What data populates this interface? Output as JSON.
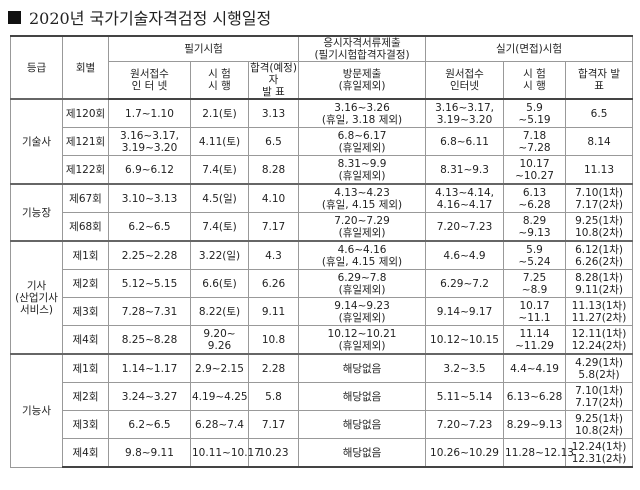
{
  "title": "2020년 국가기술자격검정 시행일정",
  "table": {
    "header": {
      "row1": [
        "등급",
        "회별",
        "필기시험",
        "응시자격서류제출\n(필기시험합격자결정)",
        "실기(면접)시험"
      ],
      "row2": [
        "원서접수\n인 터 넷",
        "시 험\n시 행",
        "합격(예정)자\n발 표",
        "방문제출\n(휴일제외)",
        "원서접수\n인터넷",
        "시 험\n시 행",
        "합격자 발\n표"
      ]
    },
    "groups": [
      {
        "grade": "기술사",
        "rows": [
          [
            "제120회",
            "1.7~1.10",
            "2.1(토)",
            "3.13",
            "3.16~3.26\n(휴일, 3.18 제외)",
            "3.16~3.17,\n3.19~3.20",
            "5.9\n~5.19",
            "6.5"
          ],
          [
            "제121회",
            "3.16~3.17,\n3.19~3.20",
            "4.11(토)",
            "6.5",
            "6.8~6.17\n(휴일제외)",
            "6.8~6.11",
            "7.18\n~7.28",
            "8.14"
          ],
          [
            "제122회",
            "6.9~6.12",
            "7.4(토)",
            "8.28",
            "8.31~9.9\n(휴일제외)",
            "8.31~9.3",
            "10.17\n~10.27",
            "11.13"
          ]
        ]
      },
      {
        "grade": "기능장",
        "rows": [
          [
            "제67회",
            "3.10~3.13",
            "4.5(일)",
            "4.10",
            "4.13~4.23\n(휴일, 4.15 제외)",
            "4.13~4.14,\n4.16~4.17",
            "6.13\n~6.28",
            "7.10(1차)\n7.17(2차)"
          ],
          [
            "제68회",
            "6.2~6.5",
            "7.4(토)",
            "7.17",
            "7.20~7.29\n(휴일제외)",
            "7.20~7.23",
            "8.29\n~9.13",
            "9.25(1차)\n10.8(2차)"
          ]
        ]
      },
      {
        "grade": "기사\n(산업기사\n서비스)",
        "rows": [
          [
            "제1회",
            "2.25~2.28",
            "3.22(일)",
            "4.3",
            "4.6~4.16\n(휴일, 4.15 제외)",
            "4.6~4.9",
            "5.9\n~5.24",
            "6.12(1차)\n6.26(2차)"
          ],
          [
            "제2회",
            "5.12~5.15",
            "6.6(토)",
            "6.26",
            "6.29~7.8\n(휴일제외)",
            "6.29~7.2",
            "7.25\n~8.9",
            "8.28(1차)\n9.11(2차)"
          ],
          [
            "제3회",
            "7.28~7.31",
            "8.22(토)",
            "9.11",
            "9.14~9.23\n(휴일제외)",
            "9.14~9.17",
            "10.17\n~11.1",
            "11.13(1차)\n11.27(2차)"
          ],
          [
            "제4회",
            "8.25~8.28",
            "9.20~\n9.26",
            "10.8",
            "10.12~10.21\n(휴일제외)",
            "10.12~10.15",
            "11.14\n~11.29",
            "12.11(1차)\n12.24(2차)"
          ]
        ]
      },
      {
        "grade": "기능사",
        "rows": [
          [
            "제1회",
            "1.14~1.17",
            "2.9~2.15",
            "2.28",
            "해당없음",
            "3.2~3.5",
            "4.4~4.19",
            "4.29(1차)\n5.8(2차)"
          ],
          [
            "제2회",
            "3.24~3.27",
            "4.19~4.25",
            "5.8",
            "해당없음",
            "5.11~5.14",
            "6.13~6.28",
            "7.10(1차)\n7.17(2차)"
          ],
          [
            "제3회",
            "6.2~6.5",
            "6.28~7.4",
            "7.17",
            "해당없음",
            "7.20~7.23",
            "8.29~9.13",
            "9.25(1차)\n10.8(2차)"
          ],
          [
            "제4회",
            "9.8~9.11",
            "10.11~10.17",
            "10.23",
            "해당없음",
            "10.26~10.29",
            "11.28~12.13",
            "12.24(1차)\n12.31(2차)"
          ]
        ]
      }
    ]
  }
}
